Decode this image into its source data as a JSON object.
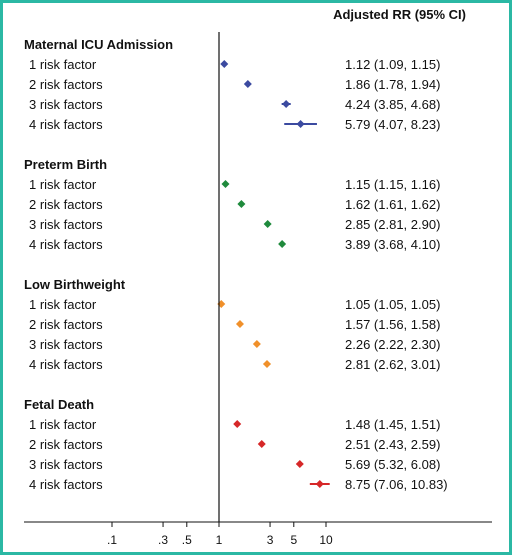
{
  "chart_data": {
    "type": "forest",
    "header": "Adjusted RR (95% CI)",
    "x_scale": "log",
    "x_range": [
      0.05,
      12
    ],
    "reference_line": 1,
    "x_ticks": [
      {
        "value": 0.1,
        "label": ".1"
      },
      {
        "value": 0.3,
        "label": ".3"
      },
      {
        "value": 0.5,
        "label": ".5"
      },
      {
        "value": 1,
        "label": "1"
      },
      {
        "value": 3,
        "label": "3"
      },
      {
        "value": 5,
        "label": "5"
      },
      {
        "value": 10,
        "label": "10"
      }
    ],
    "groups": [
      {
        "name": "Maternal ICU Admission",
        "color": "#3b4aa0",
        "rows": [
          {
            "label": "1 risk factor",
            "rr": 1.12,
            "lo": 1.09,
            "hi": 1.15,
            "text": "1.12 (1.09, 1.15)"
          },
          {
            "label": "2 risk factors",
            "rr": 1.86,
            "lo": 1.78,
            "hi": 1.94,
            "text": "1.86 (1.78, 1.94)"
          },
          {
            "label": "3 risk factors",
            "rr": 4.24,
            "lo": 3.85,
            "hi": 4.68,
            "text": "4.24 (3.85, 4.68)"
          },
          {
            "label": "4 risk factors",
            "rr": 5.79,
            "lo": 4.07,
            "hi": 8.23,
            "text": "5.79 (4.07, 8.23)"
          }
        ]
      },
      {
        "name": "Preterm Birth",
        "color": "#1f8a3c",
        "rows": [
          {
            "label": "1 risk factor",
            "rr": 1.15,
            "lo": 1.15,
            "hi": 1.16,
            "text": "1.15 (1.15, 1.16)"
          },
          {
            "label": "2 risk factors",
            "rr": 1.62,
            "lo": 1.61,
            "hi": 1.62,
            "text": "1.62 (1.61, 1.62)"
          },
          {
            "label": "3 risk factors",
            "rr": 2.85,
            "lo": 2.81,
            "hi": 2.9,
            "text": "2.85 (2.81, 2.90)"
          },
          {
            "label": "4 risk factors",
            "rr": 3.89,
            "lo": 3.68,
            "hi": 4.1,
            "text": "3.89 (3.68, 4.10)"
          }
        ]
      },
      {
        "name": "Low Birthweight",
        "color": "#f0902a",
        "rows": [
          {
            "label": "1 risk factor",
            "rr": 1.05,
            "lo": 1.05,
            "hi": 1.05,
            "text": "1.05 (1.05, 1.05)"
          },
          {
            "label": "2 risk factors",
            "rr": 1.57,
            "lo": 1.56,
            "hi": 1.58,
            "text": "1.57 (1.56, 1.58)"
          },
          {
            "label": "3 risk factors",
            "rr": 2.26,
            "lo": 2.22,
            "hi": 2.3,
            "text": "2.26 (2.22, 2.30)"
          },
          {
            "label": "4 risk factors",
            "rr": 2.81,
            "lo": 2.62,
            "hi": 3.01,
            "text": "2.81 (2.62, 3.01)"
          }
        ]
      },
      {
        "name": "Fetal Death",
        "color": "#d62728",
        "rows": [
          {
            "label": "1 risk factor",
            "rr": 1.48,
            "lo": 1.45,
            "hi": 1.51,
            "text": "1.48 (1.45, 1.51)"
          },
          {
            "label": "2 risk factors",
            "rr": 2.51,
            "lo": 2.43,
            "hi": 2.59,
            "text": "2.51 (2.43, 2.59)"
          },
          {
            "label": "3 risk factors",
            "rr": 5.69,
            "lo": 5.32,
            "hi": 6.08,
            "text": "5.69 (5.32, 6.08)"
          },
          {
            "label": "4 risk factors",
            "rr": 8.75,
            "lo": 7.06,
            "hi": 10.83,
            "text": "8.75 (7.06, 10.83)"
          }
        ]
      }
    ]
  }
}
